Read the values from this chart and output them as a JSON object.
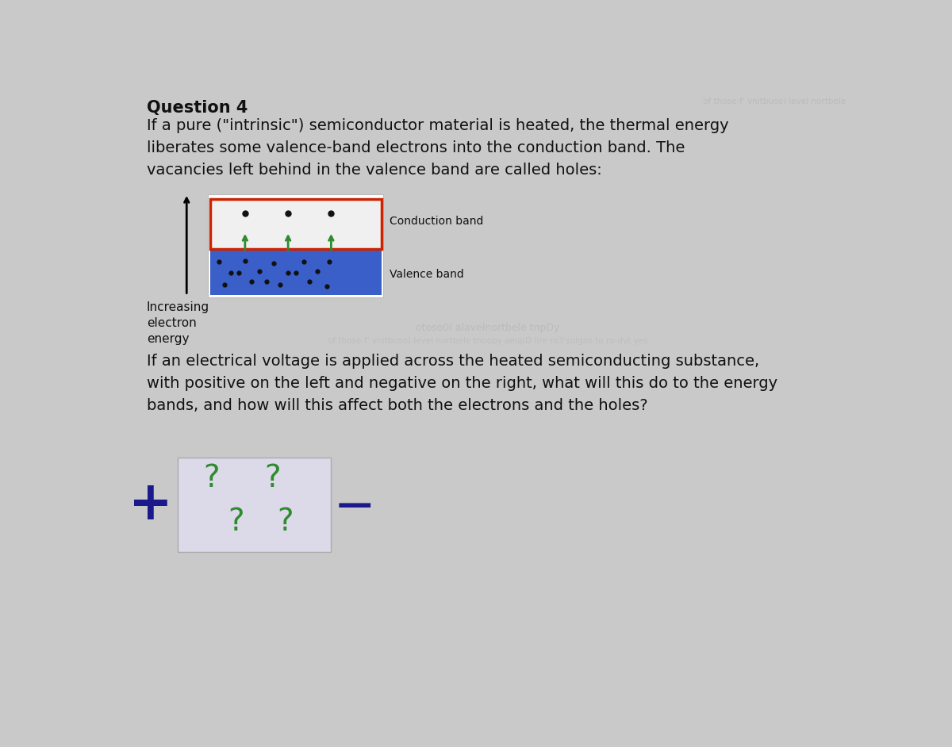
{
  "bg_color": "#c9c9c9",
  "title_bold": "Question 4",
  "title_text": "If a pure (\"intrinsic\") semiconductor material is heated, the thermal energy\nliberates some valence-band electrons into the conduction band. The\nvacancies left behind in the valence band are called holes:",
  "conduction_label": "Conduction band",
  "valence_label": "Valence band",
  "increasing_label": "Increasing\nelectron\nenergy",
  "question2_text": "If an electrical voltage is applied across the heated semiconducting substance,\nwith positive on the left and negative on the right, what will this do to the energy\nbands, and how will this affect both the electrons and the holes?",
  "watermark_text": "otoso0l alavelnortbele tnpDy",
  "watermark2_text": "of those-f' vnitbuso) level nortbele tnoopy aeupD lire ro3'sulgns to ro-dyt yes",
  "plus_color": "#1a1a8c",
  "minus_color": "#1a1a8c",
  "question_mark_color": "#2e8b2e",
  "conduction_band_fill": "#f0f0f0",
  "conduction_band_border": "#cc2200",
  "valence_band_fill": "#3a5fc8",
  "diagram_outer_border": "#bbbbbb",
  "electron_color": "#111111",
  "arrow_color": "#2e8b2e",
  "diagram2_border": "#aaaaaa",
  "diagram2_fill": "#dcdae8",
  "text_color": "#111111"
}
